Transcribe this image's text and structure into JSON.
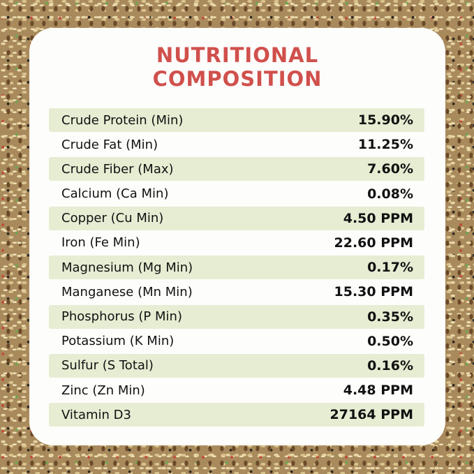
{
  "header": {
    "title_lines": [
      "NUTRITIONAL",
      "COMPOSITION"
    ]
  },
  "table": {
    "rows": [
      [
        "Crude Protein (Min)",
        "15.90%"
      ],
      [
        "Crude Fat (Min)",
        "11.25%"
      ],
      [
        "Crude Fiber (Max)",
        "7.60%"
      ],
      [
        "Calcium (Ca Min)",
        "0.08%"
      ],
      [
        "Copper (Cu Min)",
        "4.50 PPM"
      ],
      [
        "Iron (Fe Min)",
        "22.60 PPM"
      ],
      [
        "Magnesium (Mg Min)",
        "0.17%"
      ],
      [
        "Manganese (Mn Min)",
        "15.30 PPM"
      ],
      [
        "Phosphorus (P Min)",
        "0.35%"
      ],
      [
        "Potassium (K Min)",
        "0.50%"
      ],
      [
        "Sulfur (S Total)",
        "0.16%"
      ],
      [
        "Zinc (Zn Min)",
        "4.48 PPM"
      ],
      [
        "Vitamin D3",
        "27164 PPM"
      ]
    ]
  }
}
